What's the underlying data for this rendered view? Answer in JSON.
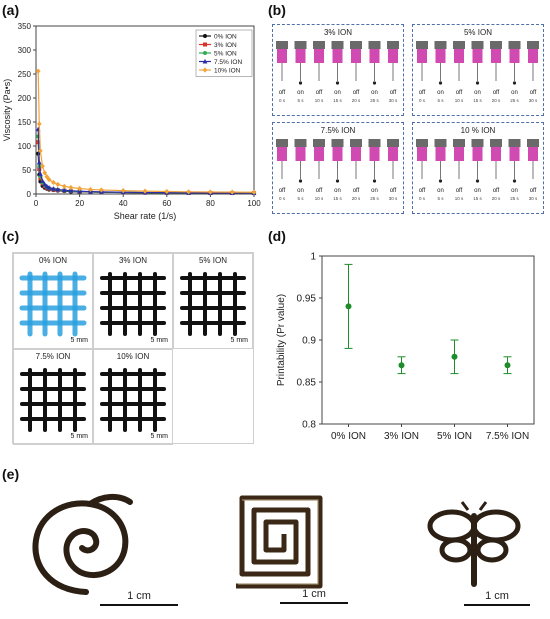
{
  "panels": {
    "a": "(a)",
    "b": "(b)",
    "c": "(c)",
    "d": "(d)",
    "e": "(e)"
  },
  "chart_data": [
    {
      "type": "line",
      "xlabel": "Shear rate (1/s)",
      "ylabel": "Viscosity (Pa•s)",
      "xlim": [
        0,
        100
      ],
      "ylim": [
        0,
        350
      ],
      "xticks": [
        0,
        20,
        40,
        60,
        80,
        100
      ],
      "yticks": [
        0,
        50,
        100,
        150,
        200,
        250,
        300,
        350
      ],
      "legend_position": "top-right",
      "x": [
        1,
        1.5,
        2,
        3,
        4,
        5,
        6,
        8,
        10,
        13,
        16,
        20,
        25,
        30,
        40,
        50,
        60,
        70,
        80,
        90,
        100
      ],
      "series": [
        {
          "name": "0% ION",
          "color": "#111111",
          "marker": "circle",
          "values": [
            84,
            40,
            26,
            17,
            13,
            11,
            9,
            8,
            7,
            6,
            5,
            4.5,
            4,
            3.5,
            3,
            2.5,
            2.2,
            2,
            2,
            1.8,
            1.7
          ]
        },
        {
          "name": "3% ION",
          "color": "#d8322a",
          "marker": "square",
          "values": [
            108,
            52,
            33,
            22,
            16,
            13,
            11,
            9,
            8,
            7,
            6,
            5,
            4.5,
            4,
            3.3,
            2.8,
            2.5,
            2.3,
            2.1,
            2,
            1.9
          ]
        },
        {
          "name": "5% ION",
          "color": "#2fae52",
          "marker": "circle",
          "values": [
            120,
            58,
            37,
            24,
            18,
            14,
            12,
            10,
            8.5,
            7,
            6,
            5.2,
            4.6,
            4,
            3.4,
            2.9,
            2.6,
            2.4,
            2.2,
            2,
            1.9
          ]
        },
        {
          "name": "7.5% ION",
          "color": "#2c2ea8",
          "marker": "triangle",
          "values": [
            135,
            66,
            42,
            27,
            20,
            16,
            13,
            11,
            9.5,
            8,
            6.8,
            5.8,
            5,
            4.4,
            3.6,
            3.1,
            2.8,
            2.5,
            2.3,
            2.1,
            2
          ]
        },
        {
          "name": "10% ION",
          "color": "#f2a33a",
          "marker": "diamond",
          "values": [
            256,
            146,
            90,
            58,
            44,
            36,
            30,
            24,
            20,
            16,
            13.5,
            11.5,
            9.5,
            8.5,
            7,
            6,
            5.2,
            4.6,
            4.2,
            3.9,
            3.6
          ]
        }
      ]
    },
    {
      "type": "scatter",
      "ylabel": "Printability (Pr value)",
      "categories": [
        "0% ION",
        "3% ION",
        "5% ION",
        "7.5% ION"
      ],
      "values": [
        0.94,
        0.87,
        0.88,
        0.87
      ],
      "errors": [
        0.05,
        0.01,
        0.02,
        0.01
      ],
      "ylim": [
        0.8,
        1.0
      ],
      "yticks": [
        "0.8",
        "0.85",
        "0.9",
        "0.95",
        "1"
      ],
      "color": "#1e8c2a"
    }
  ],
  "panel_b": {
    "groups": [
      {
        "title": "3% ION"
      },
      {
        "title": "5% ION"
      },
      {
        "title": "7.5% ION"
      },
      {
        "title": "10 % ION"
      }
    ],
    "states": [
      "off",
      "on",
      "off",
      "on",
      "off",
      "on",
      "off"
    ],
    "times": [
      "0 s",
      "5 s",
      "10 s",
      "15 s",
      "20 s",
      "25 s",
      "30 s"
    ]
  },
  "panel_c": {
    "tiles": [
      {
        "label": "0% ION",
        "scale": "5 mm",
        "color": "#2aa0e0"
      },
      {
        "label": "3% ION",
        "scale": "5 mm",
        "color": "#111111"
      },
      {
        "label": "5% ION",
        "scale": "5 mm",
        "color": "#111111"
      },
      {
        "label": "7.5% ION",
        "scale": "5 mm",
        "color": "#111111"
      },
      {
        "label": "10% ION",
        "scale": "5 mm",
        "color": "#111111"
      }
    ]
  },
  "panel_e": {
    "scales": [
      "1 cm",
      "1 cm",
      "1 cm"
    ]
  }
}
